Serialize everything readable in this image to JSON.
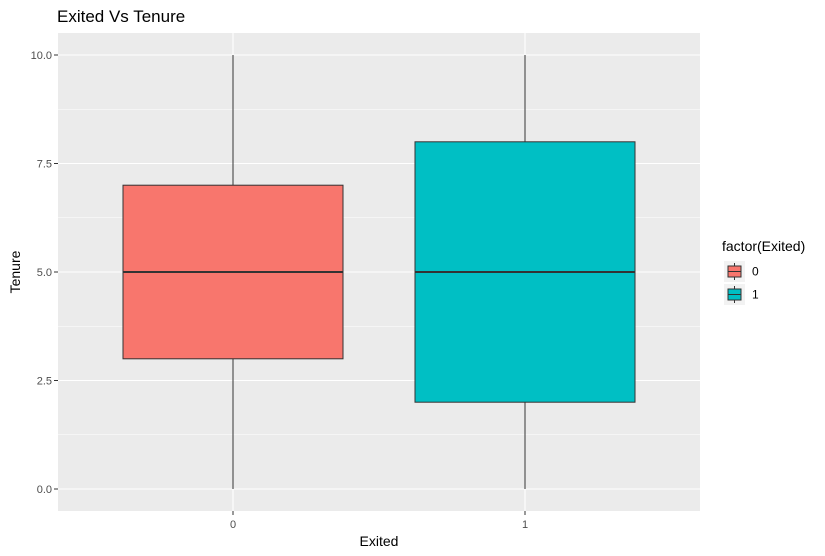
{
  "chart_data": {
    "type": "boxplot",
    "title": "Exited Vs Tenure",
    "xlabel": "Exited",
    "ylabel": "Tenure",
    "categories": [
      "0",
      "1"
    ],
    "ylim": [
      0,
      10
    ],
    "yticks": [
      0,
      2.5,
      5,
      7.5,
      10
    ],
    "ytick_labels": [
      "0.0",
      "2.5",
      "5.0",
      "7.5",
      "10.0"
    ],
    "grid": true,
    "legend": {
      "title": "factor(Exited)",
      "position": "right",
      "entries": [
        "0",
        "1"
      ]
    },
    "series": [
      {
        "category": "0",
        "min": 0,
        "q1": 3,
        "median": 5,
        "q3": 7,
        "max": 10,
        "color": "#F8766D"
      },
      {
        "category": "1",
        "min": 0,
        "q1": 2,
        "median": 5,
        "q3": 8,
        "max": 10,
        "color": "#00BFC4"
      }
    ]
  },
  "colors": {
    "panel_background": "#EBEBEB",
    "grid_line": "#FFFFFF",
    "outline": "#333333"
  }
}
